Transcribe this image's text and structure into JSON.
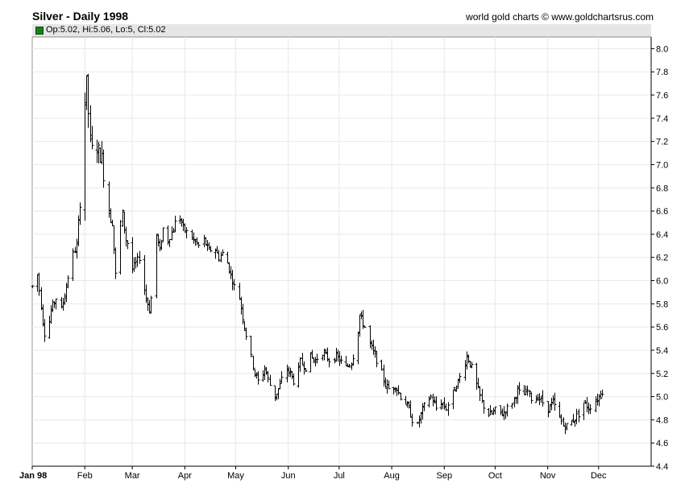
{
  "header": {
    "title": "Silver - Daily 1998",
    "credit": "world gold charts © www.goldchartsrus.com",
    "ohlc_readout": "Op:5.02, Hi:5.06, Lo:5, Cl:5.02"
  },
  "colors": {
    "bars": "#000000",
    "grid": "#e8e8e8",
    "axis": "#000000",
    "swatch": "#1a7f1a",
    "info_bar": "#e6e6e6"
  },
  "chart_data": {
    "type": "ohlc",
    "title": "Silver - Daily 1998",
    "ylim": [
      4.4,
      8.1
    ],
    "grid": true,
    "y_ticks": [
      "4.4",
      "4.6",
      "4.8",
      "5.0",
      "5.2",
      "5.4",
      "5.6",
      "5.8",
      "6.0",
      "6.2",
      "6.4",
      "6.6",
      "6.8",
      "7.0",
      "7.2",
      "7.4",
      "7.6",
      "7.8",
      "8.0"
    ],
    "x_ticks": [
      {
        "label": "Jan 98",
        "day": 0
      },
      {
        "label": "Feb",
        "day": 31
      },
      {
        "label": "Mar",
        "day": 59
      },
      {
        "label": "Apr",
        "day": 90
      },
      {
        "label": "May",
        "day": 120
      },
      {
        "label": "Jun",
        "day": 151
      },
      {
        "label": "Jul",
        "day": 181
      },
      {
        "label": "Aug",
        "day": 212
      },
      {
        "label": "Sep",
        "day": 243
      },
      {
        "label": "Oct",
        "day": 273
      },
      {
        "label": "Nov",
        "day": 304
      },
      {
        "label": "Dec",
        "day": 334
      }
    ],
    "anchors": [
      [
        0,
        5.95
      ],
      [
        3,
        6.05
      ],
      [
        6,
        5.65
      ],
      [
        8,
        5.45
      ],
      [
        11,
        5.75
      ],
      [
        14,
        5.85
      ],
      [
        17,
        5.75
      ],
      [
        20,
        5.95
      ],
      [
        23,
        6.2
      ],
      [
        26,
        6.3
      ],
      [
        28,
        6.7
      ],
      [
        30,
        7.4
      ],
      [
        32,
        7.7
      ],
      [
        34,
        7.2
      ],
      [
        36,
        7.05
      ],
      [
        38,
        7.15
      ],
      [
        41,
        7.05
      ],
      [
        43,
        6.8
      ],
      [
        45,
        6.6
      ],
      [
        47,
        6.5
      ],
      [
        49,
        6.05
      ],
      [
        51,
        6.45
      ],
      [
        53,
        6.55
      ],
      [
        55,
        6.35
      ],
      [
        57,
        6.3
      ],
      [
        59,
        6.1
      ],
      [
        61,
        6.15
      ],
      [
        63,
        6.2
      ],
      [
        65,
        6.0
      ],
      [
        67,
        5.85
      ],
      [
        69,
        5.75
      ],
      [
        71,
        5.95
      ],
      [
        73,
        6.4
      ],
      [
        75,
        6.25
      ],
      [
        77,
        6.45
      ],
      [
        80,
        6.35
      ],
      [
        83,
        6.45
      ],
      [
        86,
        6.6
      ],
      [
        89,
        6.45
      ],
      [
        92,
        6.4
      ],
      [
        95,
        6.35
      ],
      [
        98,
        6.3
      ],
      [
        101,
        6.35
      ],
      [
        104,
        6.25
      ],
      [
        107,
        6.3
      ],
      [
        110,
        6.2
      ],
      [
        113,
        6.25
      ],
      [
        116,
        6.1
      ],
      [
        119,
        5.95
      ],
      [
        122,
        5.85
      ],
      [
        125,
        5.6
      ],
      [
        128,
        5.4
      ],
      [
        131,
        5.2
      ],
      [
        134,
        5.1
      ],
      [
        137,
        5.25
      ],
      [
        140,
        5.1
      ],
      [
        143,
        5.0
      ],
      [
        146,
        5.1
      ],
      [
        149,
        5.25
      ],
      [
        152,
        5.2
      ],
      [
        155,
        5.1
      ],
      [
        158,
        5.3
      ],
      [
        161,
        5.25
      ],
      [
        164,
        5.35
      ],
      [
        167,
        5.3
      ],
      [
        170,
        5.4
      ],
      [
        173,
        5.35
      ],
      [
        176,
        5.3
      ],
      [
        179,
        5.35
      ],
      [
        182,
        5.3
      ],
      [
        185,
        5.25
      ],
      [
        188,
        5.3
      ],
      [
        191,
        5.45
      ],
      [
        193,
        5.7
      ],
      [
        196,
        5.6
      ],
      [
        199,
        5.45
      ],
      [
        202,
        5.35
      ],
      [
        205,
        5.25
      ],
      [
        208,
        5.1
      ],
      [
        211,
        5.05
      ],
      [
        214,
        5.1
      ],
      [
        217,
        5.0
      ],
      [
        220,
        4.95
      ],
      [
        223,
        4.85
      ],
      [
        226,
        4.7
      ],
      [
        229,
        4.85
      ],
      [
        232,
        4.95
      ],
      [
        235,
        5.0
      ],
      [
        238,
        4.9
      ],
      [
        241,
        4.95
      ],
      [
        244,
        4.9
      ],
      [
        247,
        5.0
      ],
      [
        250,
        5.1
      ],
      [
        253,
        5.2
      ],
      [
        256,
        5.35
      ],
      [
        259,
        5.25
      ],
      [
        262,
        5.1
      ],
      [
        265,
        4.95
      ],
      [
        268,
        4.85
      ],
      [
        271,
        4.85
      ],
      [
        274,
        4.9
      ],
      [
        277,
        4.85
      ],
      [
        280,
        4.9
      ],
      [
        283,
        4.95
      ],
      [
        286,
        5.05
      ],
      [
        289,
        5.0
      ],
      [
        292,
        5.05
      ],
      [
        295,
        4.95
      ],
      [
        298,
        5.0
      ],
      [
        301,
        4.95
      ],
      [
        304,
        4.9
      ],
      [
        307,
        4.95
      ],
      [
        310,
        4.85
      ],
      [
        313,
        4.75
      ],
      [
        316,
        4.75
      ],
      [
        319,
        4.8
      ],
      [
        322,
        4.85
      ],
      [
        325,
        4.95
      ],
      [
        328,
        4.9
      ],
      [
        331,
        4.95
      ],
      [
        334,
        5.0
      ],
      [
        336,
        5.02
      ]
    ],
    "last_bar": {
      "open": 5.02,
      "high": 5.06,
      "low": 5.0,
      "close": 5.02
    }
  }
}
